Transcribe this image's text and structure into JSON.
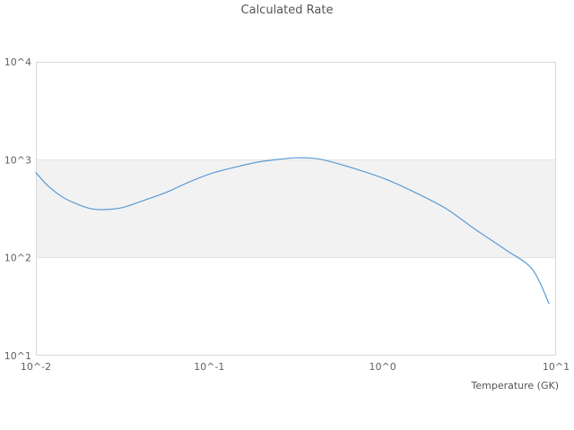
{
  "chart_data": {
    "type": "line",
    "title": "Calculated Rate",
    "xlabel": "Temperature (GK)",
    "ylabel": "",
    "x_scale": "log",
    "y_scale": "log",
    "xlim": [
      0.01,
      10
    ],
    "ylim": [
      10,
      10000
    ],
    "grid": "horizontal-decades-only",
    "legend": "none",
    "x_ticks": [
      {
        "label": "10^-2",
        "value": 0.01
      },
      {
        "label": "10^-1",
        "value": 0.1
      },
      {
        "label": "10^0",
        "value": 1
      },
      {
        "label": "10^1",
        "value": 10
      }
    ],
    "y_ticks": [
      {
        "label": "10^1",
        "value": 10
      },
      {
        "label": "10^2",
        "value": 100
      },
      {
        "label": "10^3",
        "value": 1000
      },
      {
        "label": "10^4",
        "value": 10000
      }
    ],
    "band": {
      "from": 100,
      "to": 1000,
      "color": "#f2f2f2",
      "edge_color": "#e2e2e2"
    },
    "series": [
      {
        "name": "Calculated Rate",
        "color": "#5b9bd5",
        "points": [
          [
            0.01,
            740
          ],
          [
            0.0117,
            545
          ],
          [
            0.0143,
            415
          ],
          [
            0.0175,
            350
          ],
          [
            0.021,
            315
          ],
          [
            0.025,
            310
          ],
          [
            0.0316,
            325
          ],
          [
            0.042,
            385
          ],
          [
            0.057,
            468
          ],
          [
            0.076,
            590
          ],
          [
            0.104,
            730
          ],
          [
            0.143,
            845
          ],
          [
            0.19,
            945
          ],
          [
            0.25,
            1010
          ],
          [
            0.316,
            1045
          ],
          [
            0.4,
            1035
          ],
          [
            0.47,
            985
          ],
          [
            0.7,
            805
          ],
          [
            1.05,
            630
          ],
          [
            1.55,
            460
          ],
          [
            2.3,
            320
          ],
          [
            3.4,
            196
          ],
          [
            5.1,
            121
          ],
          [
            7.3,
            76
          ],
          [
            9.1,
            34
          ]
        ]
      }
    ],
    "colors": {
      "background": "#ffffff",
      "plot_border": "#d9d9d9",
      "grid_line": "#e2e2e2",
      "title_text": "#555555",
      "tick_text": "#606060",
      "line": "#5b9bd5"
    }
  }
}
